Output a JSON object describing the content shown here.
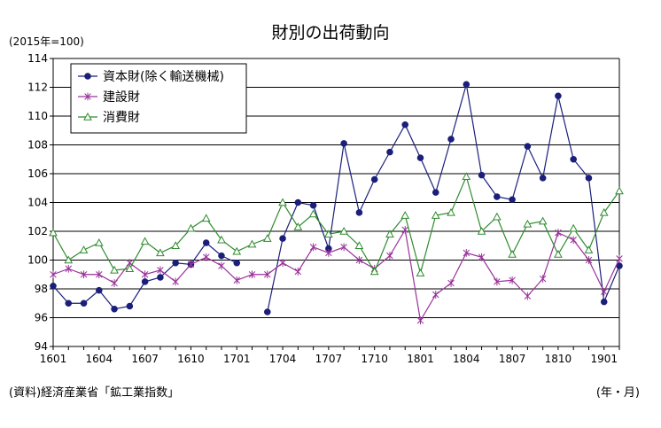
{
  "chart_data": {
    "type": "line",
    "title": "財別の出荷動向",
    "unit_note": "(2015年=100)",
    "source_note": "(資料)経済産業省「鉱工業指数」",
    "x_unit_note": "(年・月)",
    "ylim": [
      94,
      114
    ],
    "y_ticks": [
      "94",
      "96",
      "98",
      "100",
      "102",
      "104",
      "106",
      "108",
      "110",
      "112",
      "114"
    ],
    "x_ticks": [
      "1601",
      "1604",
      "1607",
      "1610",
      "1701",
      "1704",
      "1707",
      "1710",
      "1801",
      "1804",
      "1807",
      "1810",
      "1901"
    ],
    "x": [
      "1601",
      "1602",
      "1603",
      "1604",
      "1605",
      "1606",
      "1607",
      "1608",
      "1609",
      "1610",
      "1611",
      "1612",
      "1701",
      "1702",
      "1703",
      "1704",
      "1705",
      "1706",
      "1707",
      "1708",
      "1709",
      "1710",
      "1711",
      "1712",
      "1801",
      "1802",
      "1803",
      "1804",
      "1805",
      "1806",
      "1807",
      "1808",
      "1809",
      "1810",
      "1811",
      "1812",
      "1901",
      "1902"
    ],
    "grid": "horizontal",
    "legend_position": "top-left",
    "series": [
      {
        "name": "資本財(除く輸送機械)",
        "color": "#1b1f7a",
        "marker": "filled-circle",
        "values": [
          98.2,
          97.0,
          97.0,
          97.9,
          96.6,
          96.8,
          98.5,
          98.8,
          99.8,
          99.7,
          101.2,
          100.3,
          99.8,
          null,
          96.4,
          101.5,
          104.0,
          103.8,
          100.8,
          108.1,
          103.3,
          105.6,
          107.5,
          109.4,
          107.1,
          104.7,
          108.4,
          112.2,
          105.9,
          104.4,
          104.2,
          107.9,
          105.7,
          111.4,
          107.0,
          105.7,
          97.1,
          99.6
        ]
      },
      {
        "name": "建設財",
        "color": "#993399",
        "marker": "star",
        "values": [
          99.0,
          99.4,
          99.0,
          99.0,
          98.4,
          99.8,
          99.0,
          99.3,
          98.5,
          99.7,
          100.2,
          99.6,
          98.6,
          99.0,
          99.0,
          99.8,
          99.2,
          100.9,
          100.5,
          100.9,
          100.0,
          99.4,
          100.3,
          102.1,
          95.8,
          97.6,
          98.4,
          100.5,
          100.2,
          98.5,
          98.6,
          97.5,
          98.7,
          101.9,
          101.4,
          100.0,
          97.8,
          100.1
        ]
      },
      {
        "name": "消費財",
        "color": "#2e8b2e",
        "marker": "open-triangle",
        "values": [
          101.9,
          100.0,
          100.7,
          101.2,
          99.3,
          99.4,
          101.3,
          100.5,
          101.0,
          102.2,
          102.9,
          101.4,
          100.6,
          101.1,
          101.5,
          104.0,
          102.3,
          103.2,
          101.8,
          102.0,
          101.0,
          99.2,
          101.8,
          103.1,
          99.1,
          103.1,
          103.3,
          105.8,
          102.0,
          103.0,
          100.4,
          102.5,
          102.7,
          100.4,
          102.2,
          100.7,
          103.3,
          104.8
        ]
      }
    ]
  }
}
